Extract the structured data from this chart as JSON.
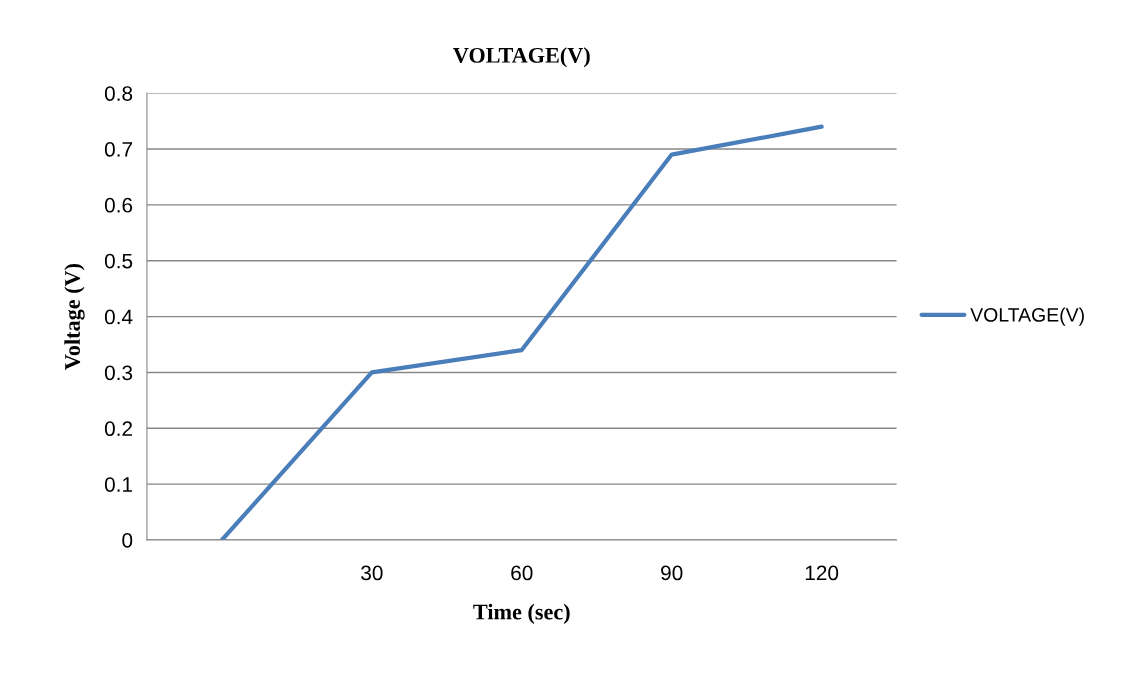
{
  "chart_data": {
    "type": "line",
    "title": "VOLTAGE(V)",
    "xlabel": "Time (sec)",
    "ylabel": "Voltage (V)",
    "categories": [
      null,
      "30",
      "60",
      "90",
      "120"
    ],
    "series": [
      {
        "name": "VOLTAGE(V)",
        "color": "#4a7ebb",
        "values": [
          0,
          0.3,
          0.34,
          0.69,
          0.74
        ]
      }
    ],
    "ylim": [
      0,
      0.8
    ],
    "yticks": [
      0,
      0.1,
      0.2,
      0.3,
      0.4,
      0.5,
      0.6,
      0.7,
      0.8
    ],
    "grid": "y",
    "legend": "right",
    "marker": "none",
    "line_style": "solid"
  }
}
